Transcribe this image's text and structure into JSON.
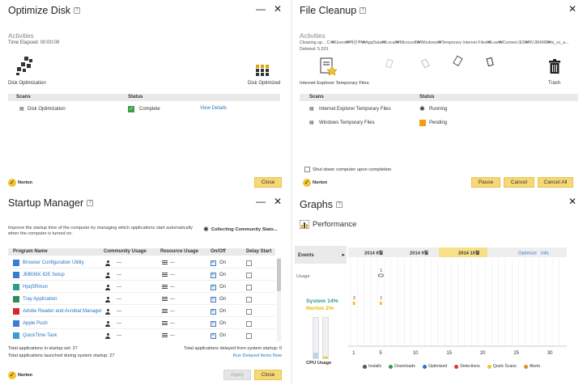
{
  "optimize": {
    "title": "Optimize Disk",
    "activities_label": "Activities",
    "elapsed": "Time Elapsed: 00:00:09",
    "left_icon_label": "Disk Optimization",
    "right_icon_label": "Disk Optimized",
    "col_scans": "Scans",
    "col_status": "Status",
    "rows": [
      {
        "name": "Disk Optimization",
        "status": "Complete",
        "link": "View Details"
      }
    ],
    "close_label": "Close"
  },
  "cleanup": {
    "title": "File Cleanup",
    "activities_label": "Activities",
    "cleaning": "Cleaning up... C:₩Users₩박은주₩AppData₩Local₩Microsoft₩Windows₩Temporary Internet Files₩Low₩Content.IE5₩8VJ8HM8₩vi_vc_a...",
    "deleted": "Deleted: 5,531",
    "left_icon_label": "Internet Explorer Temporary Files",
    "right_icon_label": "Trash",
    "col_scans": "Scans",
    "col_status": "Status",
    "rows": [
      {
        "name": "Internet Explorer Temporary Files",
        "status": "Running"
      },
      {
        "name": "Windows Temporary Files",
        "status": "Pending"
      }
    ],
    "shutdown_label": "Shut down computer upon completion",
    "pause_label": "Pause",
    "cancel_label": "Cancel",
    "cancel_all_label": "Cancel All"
  },
  "startup": {
    "title": "Startup Manager",
    "desc": "Improve the startup time of the computer by managing which applications start automatically when the computer is turned on.",
    "collecting": "Collecting Community Stats...",
    "col_program": "Program Name",
    "col_community": "Community Usage",
    "col_resource": "Resource Usage",
    "col_onoff": "On/Off",
    "col_delay": "Delay Start",
    "rows": [
      {
        "name": "Browser Configuration Utility",
        "community": "---",
        "onoff": "On",
        "icon_color": "#3a7bd5"
      },
      {
        "name": "JMB36X IDE Setup",
        "community": "---",
        "onoff": "On",
        "icon_color": "#3a7bd5"
      },
      {
        "name": "HpqSRmon",
        "community": "---",
        "onoff": "On",
        "icon_color": "#2a9d8f"
      },
      {
        "name": "Tray Application",
        "community": "---",
        "onoff": "On",
        "icon_color": "#2e8b57"
      },
      {
        "name": "Adobe Reader and Acrobat Manager",
        "community": "---",
        "onoff": "On",
        "icon_color": "#d62828"
      },
      {
        "name": "Apple Push",
        "community": "---",
        "onoff": "On",
        "icon_color": "#3a7bd5"
      },
      {
        "name": "QuickTime Task",
        "community": "---",
        "onoff": "On",
        "icon_color": "#3a9bd5"
      }
    ],
    "total_startup": "Total applications in startup set: 27",
    "total_launched": "Total applications launched during system startup: 27",
    "total_delayed": "Total applications delayed from system startup: 0",
    "run_delayed": "Run Delayed Items Now",
    "apply_label": "Apply",
    "close_label": "Close"
  },
  "graphs": {
    "title": "Graphs",
    "section": "Performance",
    "events_label": "Events",
    "usage_label": "Usage",
    "months": [
      "2014 8월",
      "2014 9월",
      "2014 10월"
    ],
    "optimize_link": "Optimize",
    "info_link": "Info",
    "system_pct": "System 14%",
    "norton_pct": "Norton 2%",
    "cpu_label": "CPU Usage",
    "event_marks": [
      {
        "label": "1",
        "day": 5
      },
      {
        "label": "2",
        "day": 1
      },
      {
        "label": "1",
        "day": 5
      }
    ],
    "x_ticks": [
      "1",
      "5",
      "10",
      "15",
      "20",
      "25",
      "30"
    ],
    "legend": [
      {
        "label": "Installs",
        "color": "#555"
      },
      {
        "label": "Downloads",
        "color": "#2a9d4a"
      },
      {
        "label": "Optimized",
        "color": "#2a74c4"
      },
      {
        "label": "Detections",
        "color": "#d33"
      },
      {
        "label": "Quick Scans",
        "color": "#f4c430"
      },
      {
        "label": "Alerts",
        "color": "#e09020"
      }
    ]
  },
  "brand": "Norton",
  "colors": {
    "accent": "#f4c430",
    "link": "#2a74c4",
    "ok": "#3aa14b",
    "pending": "#f39c12"
  }
}
